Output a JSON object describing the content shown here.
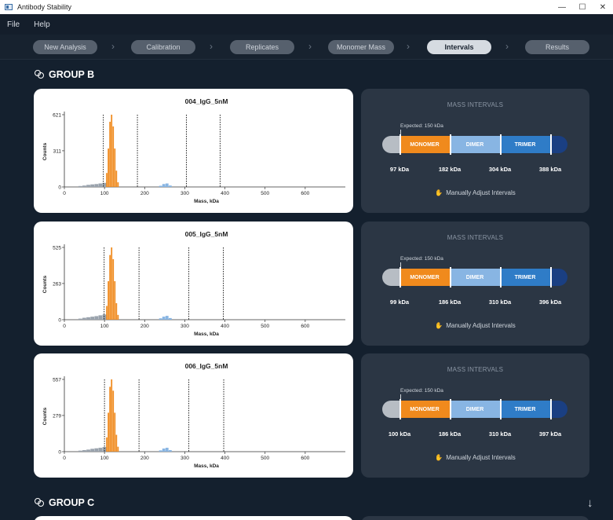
{
  "window": {
    "title": "Antibody Stability",
    "minimize": "—",
    "maximize": "☐",
    "close": "✕"
  },
  "menu": {
    "file": "File",
    "help": "Help"
  },
  "steps": [
    "New Analysis",
    "Calibration",
    "Replicates",
    "Monomer Mass",
    "Intervals",
    "Results"
  ],
  "active_step": "Intervals",
  "groups": {
    "b": "GROUP B",
    "c": "GROUP C"
  },
  "panel_labels": {
    "title": "MASS INTERVALS",
    "expected": "Expected: 150 kDa",
    "monomer": "MONOMER",
    "dimer": "DIMER",
    "trimer": "TRIMER",
    "adjust": "Manually Adjust Intervals"
  },
  "chart_data": [
    {
      "type": "bar",
      "title": "004_IgG_5nM",
      "xlabel": "Mass, kDa",
      "ylabel": "Counts",
      "xlim": [
        0,
        700
      ],
      "xticks": [
        0,
        100,
        200,
        300,
        400,
        500,
        600
      ],
      "yticks": [
        0,
        311,
        621
      ],
      "ylim": [
        0,
        621
      ],
      "interval_lines_kda": [
        97,
        182,
        304,
        388
      ],
      "histogram_orange": {
        "bins_kda": [
          106,
          110,
          114,
          118,
          122,
          126,
          130,
          134
        ],
        "counts": [
          120,
          330,
          560,
          621,
          520,
          330,
          140,
          40
        ]
      },
      "histogram_gray": {
        "bins_kda": [
          40,
          50,
          60,
          70,
          80,
          90,
          100
        ],
        "counts": [
          8,
          12,
          18,
          22,
          25,
          30,
          35
        ]
      },
      "histogram_blue": {
        "bins_kda": [
          240,
          248,
          256,
          264
        ],
        "counts": [
          10,
          25,
          30,
          12
        ]
      },
      "intervals": {
        "lower": "97 kDa",
        "monomer_dimer": "182 kDa",
        "dimer_trimer": "304 kDa",
        "upper": "388 kDa"
      }
    },
    {
      "type": "bar",
      "title": "005_IgG_5nM",
      "xlabel": "Mass, kDa",
      "ylabel": "Counts",
      "xlim": [
        0,
        700
      ],
      "xticks": [
        0,
        100,
        200,
        300,
        400,
        500,
        600
      ],
      "yticks": [
        0,
        263,
        525
      ],
      "ylim": [
        0,
        525
      ],
      "interval_lines_kda": [
        99,
        186,
        310,
        396
      ],
      "histogram_orange": {
        "bins_kda": [
          106,
          110,
          114,
          118,
          122,
          126,
          130,
          134
        ],
        "counts": [
          100,
          280,
          470,
          525,
          440,
          280,
          120,
          35
        ]
      },
      "histogram_gray": {
        "bins_kda": [
          40,
          50,
          60,
          70,
          80,
          90,
          100
        ],
        "counts": [
          8,
          14,
          18,
          22,
          26,
          32,
          38
        ]
      },
      "histogram_blue": {
        "bins_kda": [
          240,
          248,
          256,
          264
        ],
        "counts": [
          10,
          22,
          28,
          12
        ]
      },
      "intervals": {
        "lower": "99 kDa",
        "monomer_dimer": "186 kDa",
        "dimer_trimer": "310 kDa",
        "upper": "396 kDa"
      }
    },
    {
      "type": "bar",
      "title": "006_IgG_5nM",
      "xlabel": "Mass, kDa",
      "ylabel": "Counts",
      "xlim": [
        0,
        700
      ],
      "xticks": [
        0,
        100,
        200,
        300,
        400,
        500,
        600
      ],
      "yticks": [
        0,
        279,
        557
      ],
      "ylim": [
        0,
        557
      ],
      "interval_lines_kda": [
        100,
        186,
        310,
        397
      ],
      "histogram_orange": {
        "bins_kda": [
          106,
          110,
          114,
          118,
          122,
          126,
          130,
          134
        ],
        "counts": [
          110,
          300,
          500,
          557,
          470,
          300,
          130,
          38
        ]
      },
      "histogram_gray": {
        "bins_kda": [
          40,
          50,
          60,
          70,
          80,
          90,
          100
        ],
        "counts": [
          8,
          12,
          16,
          22,
          26,
          30,
          36
        ]
      },
      "histogram_blue": {
        "bins_kda": [
          240,
          248,
          256,
          264
        ],
        "counts": [
          10,
          24,
          30,
          12
        ]
      },
      "intervals": {
        "lower": "100 kDa",
        "monomer_dimer": "186 kDa",
        "dimer_trimer": "310 kDa",
        "upper": "397 kDa"
      }
    }
  ],
  "colors": {
    "monomer": "#f08a1d",
    "dimer": "#88b5e3",
    "trimer": "#2f7cc7",
    "gray": "#9aa3ad",
    "background": "#14202e",
    "panel": "#2b3644"
  }
}
